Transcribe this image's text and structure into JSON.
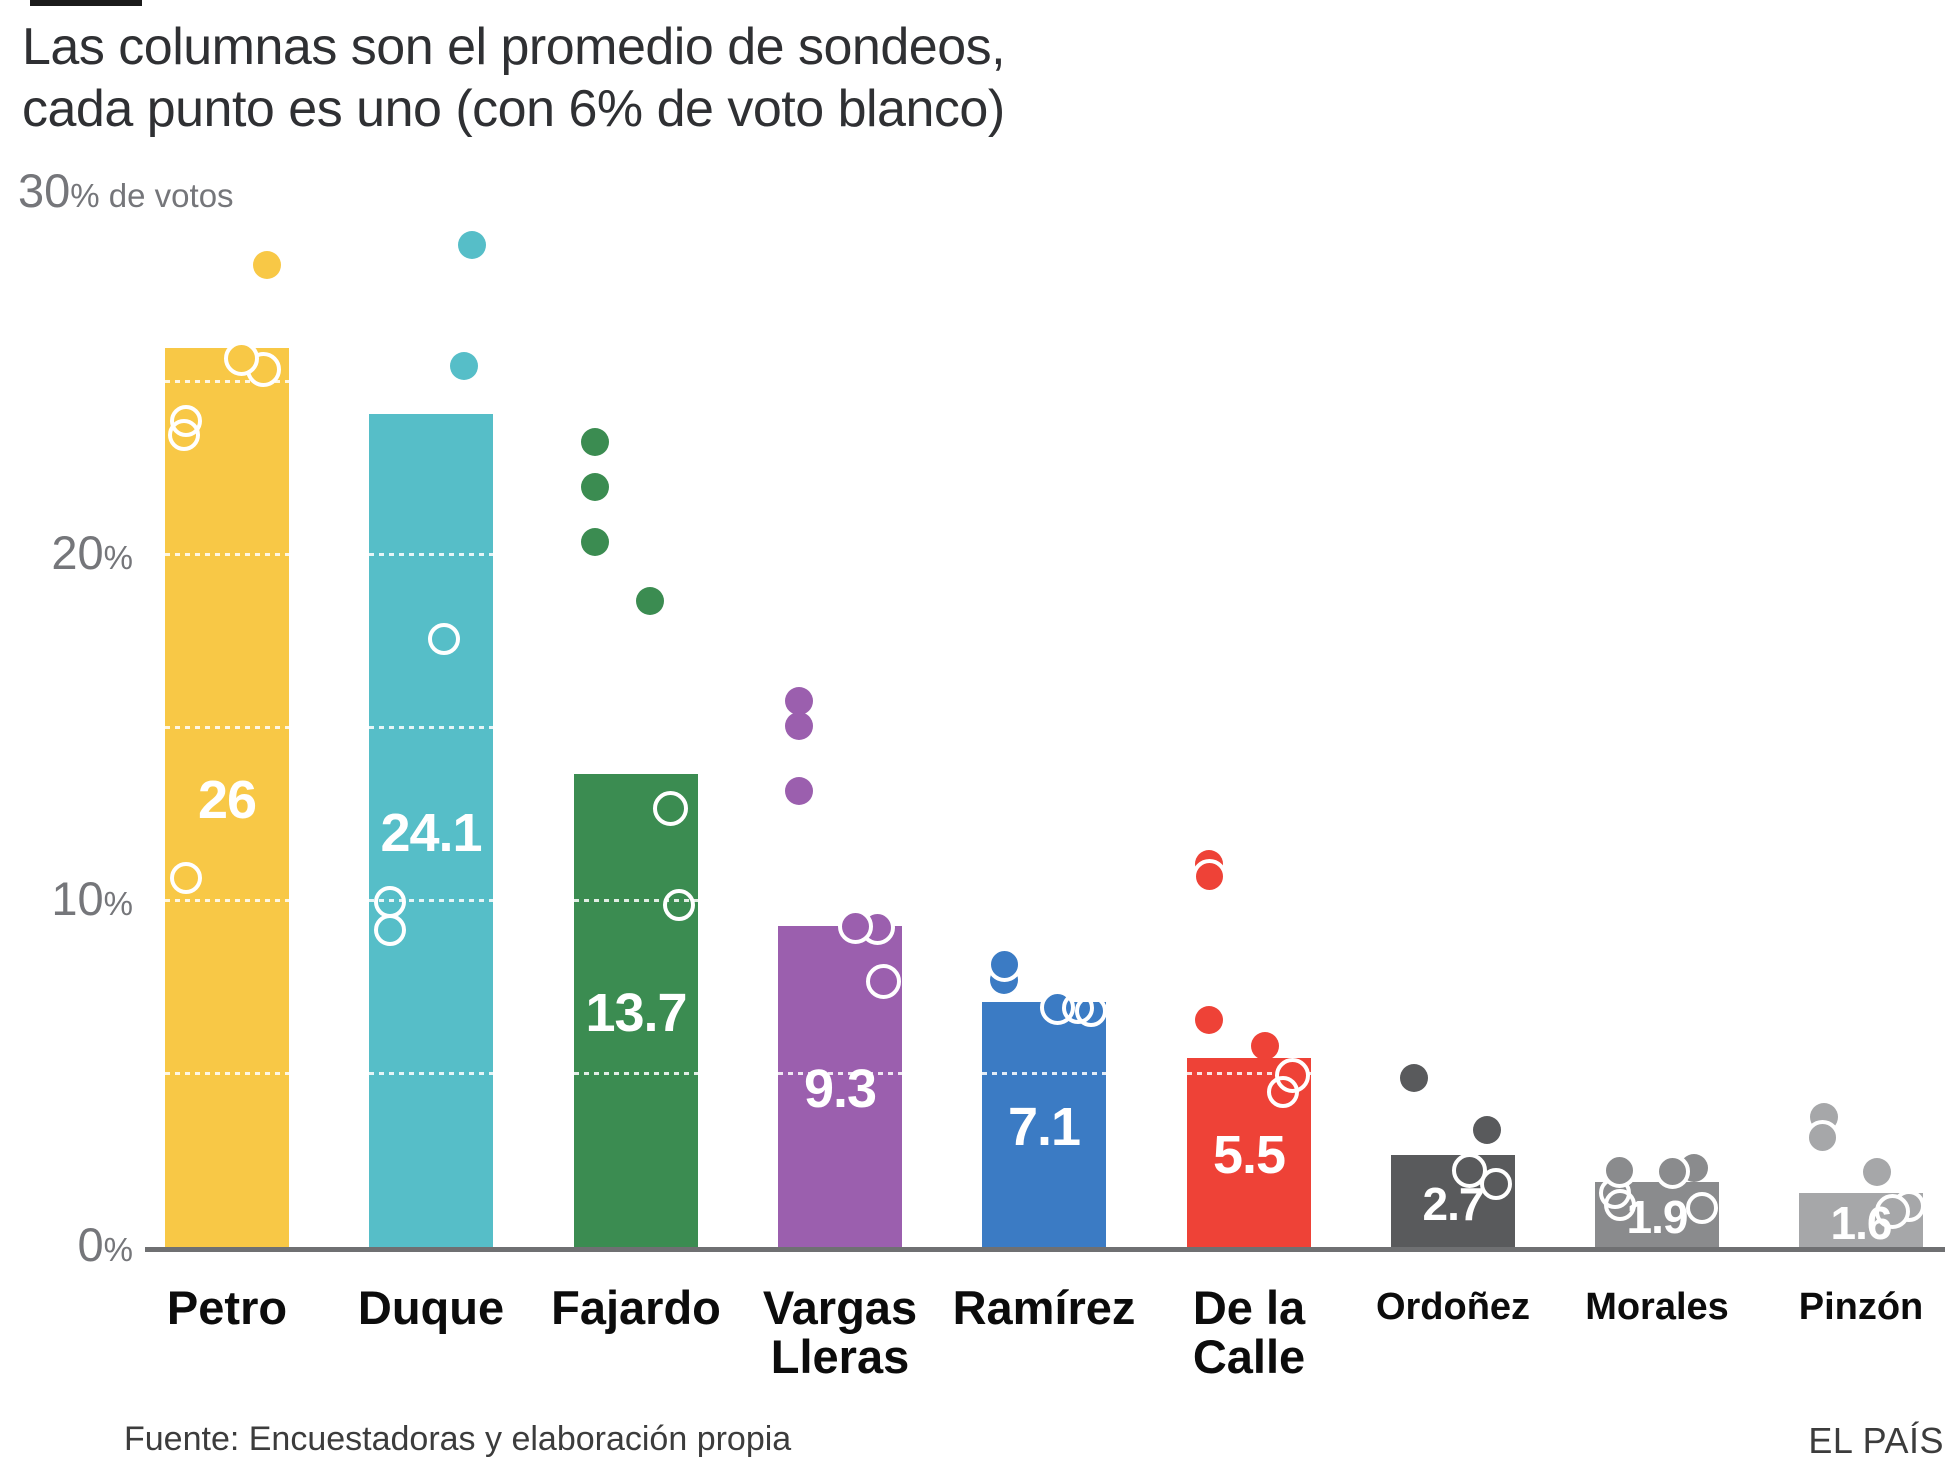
{
  "header": {
    "title_line1": "Las columnas son el promedio de sondeos,",
    "title_line2": "cada punto es uno (con 6% de voto blanco)"
  },
  "axis": {
    "ticks": [
      {
        "v": 30,
        "num": "30",
        "suffix": "% de votos"
      },
      {
        "v": 20,
        "num": "20",
        "suffix": "%"
      },
      {
        "v": 10,
        "num": "10",
        "suffix": "%"
      },
      {
        "v": 0,
        "num": "0",
        "suffix": "%"
      }
    ]
  },
  "footer": {
    "source": "Fuente: Encuestadoras y elaboración propia",
    "brand": "EL PAÍS"
  },
  "chart_data": {
    "type": "bar",
    "title": "Las columnas son el promedio de sondeos, cada punto es uno (con 6% de voto blanco)",
    "ylabel": "% de votos",
    "ylim": [
      0,
      30
    ],
    "yticks": [
      0,
      10,
      20,
      30
    ],
    "gridline_step_pct": 5,
    "grid": "white dashed lines over bars every 5%",
    "legend_position": "none",
    "bars": [
      {
        "category": "Petro",
        "label_lines": [
          "Petro"
        ],
        "value": 26,
        "value_label": "26",
        "color": "#F8C846",
        "small": false,
        "polls": [
          {
            "v": 28.4,
            "dx": 40,
            "style": "filled"
          },
          {
            "v": 23.9,
            "dx": -41,
            "style": "open"
          },
          {
            "v": 23.5,
            "dx": -43,
            "style": "open"
          },
          {
            "v": 10.7,
            "dx": -41,
            "style": "open"
          },
          {
            "v": 25.4,
            "dx": 36,
            "style": "ringfill"
          },
          {
            "v": 25.7,
            "dx": 14,
            "style": "ringfill"
          }
        ]
      },
      {
        "category": "Duque",
        "label_lines": [
          "Duque"
        ],
        "value": 24.1,
        "value_label": "24.1",
        "color": "#56BEC8",
        "small": false,
        "polls": [
          {
            "v": 29.0,
            "dx": 41,
            "style": "filled"
          },
          {
            "v": 25.5,
            "dx": 33,
            "style": "filled"
          },
          {
            "v": 17.6,
            "dx": 13,
            "style": "open"
          },
          {
            "v": 10.0,
            "dx": -41,
            "style": "open"
          },
          {
            "v": 9.2,
            "dx": -41,
            "style": "open"
          }
        ]
      },
      {
        "category": "Fajardo",
        "label_lines": [
          "Fajardo"
        ],
        "value": 13.7,
        "value_label": "13.7",
        "color": "#3B8C51",
        "small": false,
        "polls": [
          {
            "v": 23.3,
            "dx": -41,
            "style": "filled"
          },
          {
            "v": 22.0,
            "dx": -41,
            "style": "filled"
          },
          {
            "v": 20.4,
            "dx": -41,
            "style": "filled"
          },
          {
            "v": 18.7,
            "dx": 14,
            "style": "filled"
          },
          {
            "v": 12.7,
            "dx": 34,
            "style": "ringfill"
          },
          {
            "v": 9.9,
            "dx": 43,
            "style": "open"
          }
        ]
      },
      {
        "category": "Vargas Lleras",
        "label_lines": [
          "Vargas",
          "Lleras"
        ],
        "value": 9.3,
        "value_label": "9.3",
        "color": "#9B5FAE",
        "small": false,
        "polls": [
          {
            "v": 15.8,
            "dx": -41,
            "style": "filled"
          },
          {
            "v": 15.1,
            "dx": -41,
            "style": "filled"
          },
          {
            "v": 13.2,
            "dx": -41,
            "style": "filled"
          },
          {
            "v": 9.25,
            "dx": 37,
            "style": "ringfill"
          },
          {
            "v": 9.3,
            "dx": 15,
            "style": "ringfill"
          },
          {
            "v": 7.7,
            "dx": 43,
            "style": "ringfill"
          }
        ]
      },
      {
        "category": "Ramírez",
        "label_lines": [
          "Ramírez"
        ],
        "value": 7.1,
        "value_label": "7.1",
        "color": "#3B7BC4",
        "small": false,
        "polls": [
          {
            "v": 7.75,
            "dx": -40,
            "style": "filled"
          },
          {
            "v": 8.2,
            "dx": -40,
            "style": "ringfill"
          },
          {
            "v": 6.95,
            "dx": 13,
            "style": "ringfill"
          },
          {
            "v": 6.95,
            "dx": 34,
            "style": "open"
          },
          {
            "v": 6.85,
            "dx": 47,
            "style": "open"
          }
        ]
      },
      {
        "category": "De la Calle",
        "label_lines": [
          "De la",
          "Calle"
        ],
        "value": 5.5,
        "value_label": "5.5",
        "color": "#EE4237",
        "small": false,
        "polls": [
          {
            "v": 11.1,
            "dx": -40,
            "style": "filled"
          },
          {
            "v": 10.75,
            "dx": -40,
            "style": "ringfill"
          },
          {
            "v": 6.6,
            "dx": -40,
            "style": "filled"
          },
          {
            "v": 5.85,
            "dx": 16,
            "style": "filled"
          },
          {
            "v": 5.0,
            "dx": 43,
            "style": "ringfill"
          },
          {
            "v": 4.5,
            "dx": 34,
            "style": "open"
          }
        ]
      },
      {
        "category": "Ordoñez",
        "label_lines": [
          "Ordoñez"
        ],
        "value": 2.7,
        "value_label": "2.7",
        "color": "#595A5C",
        "small": true,
        "polls": [
          {
            "v": 4.9,
            "dx": -39,
            "style": "filled"
          },
          {
            "v": 3.4,
            "dx": 34,
            "style": "filled"
          },
          {
            "v": 2.25,
            "dx": 16,
            "style": "ringfill"
          },
          {
            "v": 1.85,
            "dx": 43,
            "style": "open"
          }
        ]
      },
      {
        "category": "Morales",
        "label_lines": [
          "Morales"
        ],
        "value": 1.9,
        "value_label": "1.9",
        "color": "#8A8B8D",
        "small": true,
        "polls": [
          {
            "v": 1.6,
            "dx": -42,
            "style": "open"
          },
          {
            "v": 1.25,
            "dx": -37,
            "style": "open"
          },
          {
            "v": 2.25,
            "dx": -38,
            "style": "ringfill"
          },
          {
            "v": 2.3,
            "dx": 37,
            "style": "filled"
          },
          {
            "v": 2.2,
            "dx": 15,
            "style": "ringfill"
          },
          {
            "v": 1.15,
            "dx": 45,
            "style": "open"
          }
        ]
      },
      {
        "category": "Pinzón",
        "label_lines": [
          "Pinzón"
        ],
        "value": 1.6,
        "value_label": "1.6",
        "color": "#A6A7A9",
        "small": true,
        "polls": [
          {
            "v": 3.8,
            "dx": -37,
            "style": "filled"
          },
          {
            "v": 3.2,
            "dx": -39,
            "style": "ringfill"
          },
          {
            "v": 2.2,
            "dx": 16,
            "style": "filled"
          },
          {
            "v": 1.2,
            "dx": 48,
            "style": "open"
          },
          {
            "v": 1.05,
            "dx": 31,
            "style": "ringfill"
          }
        ]
      }
    ]
  }
}
